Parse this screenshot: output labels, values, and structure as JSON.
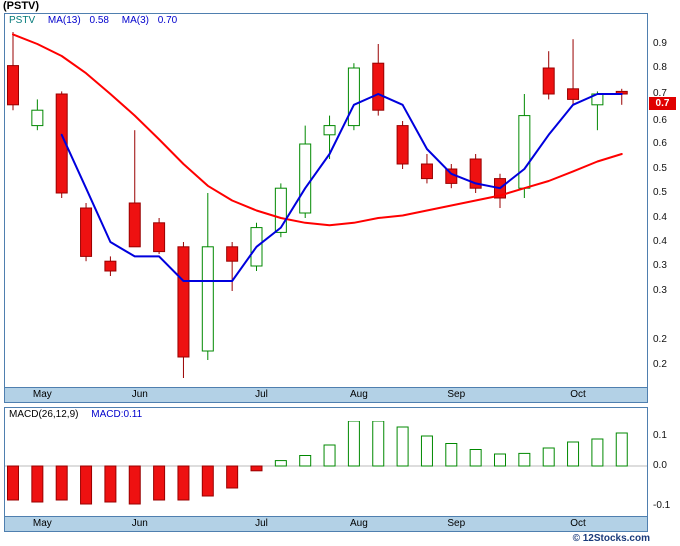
{
  "title": "(PSTV)",
  "footer": {
    "watermark": "© 12Stocks.com"
  },
  "colors": {
    "up": "#008800",
    "up_fill": "#ffffff",
    "down": "#990000",
    "down_fill": "#ee1111",
    "ma_slow": "#ff0000",
    "ma_fast": "#0000dd",
    "axis_band": "#b3d1e6",
    "panel_border": "#4f7faf",
    "price_box_bg": "#e00000",
    "price_box_text": "#ffffff",
    "legend_blue": "#0000cc",
    "ticker_teal": "#007878",
    "zero_line": "#bbbbbb"
  },
  "main": {
    "legend": {
      "symbol": "PSTV",
      "ma13_label": "MA(13)",
      "ma13_value": "0.58",
      "ma3_label": "MA(3)",
      "ma3_value": "0.70"
    },
    "price_marker": {
      "label": "0.7",
      "y": 77
    }
  },
  "macd": {
    "legend_label": "MACD(26,12,9)",
    "legend_value": "MACD:0.11"
  },
  "chart_data": [
    {
      "type": "candlestick",
      "title": "PSTV weekly candlestick chart with MA(13)=0.58 and MA(3)=0.70, last close 0.70",
      "x_labels": [
        "May",
        "Jun",
        "Jul",
        "Aug",
        "Sep",
        "Oct"
      ],
      "x_label_indices": [
        1,
        5,
        10,
        14,
        18,
        23
      ],
      "y_scale_anchors": [
        [
          0.9,
          17
        ],
        [
          0.8,
          41
        ],
        [
          0.7,
          67
        ],
        [
          0.65,
          94
        ],
        [
          0.6,
          117
        ],
        [
          0.55,
          142
        ],
        [
          0.5,
          166
        ],
        [
          0.45,
          191
        ],
        [
          0.4,
          215
        ],
        [
          0.35,
          239
        ],
        [
          0.3,
          264
        ],
        [
          0.25,
          300
        ],
        [
          0.2,
          330
        ]
      ],
      "y_tick_labels": [
        [
          "0.9",
          17
        ],
        [
          "0.8",
          41
        ],
        [
          "0.7",
          67
        ],
        [
          "0.6",
          94
        ],
        [
          "0.6",
          117
        ],
        [
          "0.5",
          142
        ],
        [
          "0.5",
          166
        ],
        [
          "0.4",
          191
        ],
        [
          "0.4",
          215
        ],
        [
          "0.3",
          239
        ],
        [
          "0.3",
          264
        ],
        [
          "0.2",
          313
        ],
        [
          "0.2",
          338
        ]
      ],
      "candles": [
        [
          0.81,
          0.95,
          0.67,
          0.68
        ],
        [
          0.64,
          0.69,
          0.63,
          0.67
        ],
        [
          0.7,
          0.71,
          0.49,
          0.5
        ],
        [
          0.47,
          0.48,
          0.36,
          0.37
        ],
        [
          0.36,
          0.37,
          0.33,
          0.34
        ],
        [
          0.48,
          0.63,
          0.39,
          0.39
        ],
        [
          0.44,
          0.45,
          0.375,
          0.38
        ],
        [
          0.39,
          0.4,
          0.165,
          0.2
        ],
        [
          0.21,
          0.5,
          0.195,
          0.39
        ],
        [
          0.39,
          0.4,
          0.3,
          0.36
        ],
        [
          0.35,
          0.44,
          0.34,
          0.43
        ],
        [
          0.42,
          0.52,
          0.41,
          0.51
        ],
        [
          0.46,
          0.64,
          0.45,
          0.6
        ],
        [
          0.62,
          0.66,
          0.57,
          0.64
        ],
        [
          0.64,
          0.82,
          0.63,
          0.8
        ],
        [
          0.82,
          0.9,
          0.66,
          0.67
        ],
        [
          0.64,
          0.65,
          0.55,
          0.56
        ],
        [
          0.56,
          0.58,
          0.52,
          0.53
        ],
        [
          0.55,
          0.56,
          0.51,
          0.52
        ],
        [
          0.57,
          0.58,
          0.5,
          0.51
        ],
        [
          0.53,
          0.54,
          0.47,
          0.49
        ],
        [
          0.51,
          0.7,
          0.49,
          0.66
        ],
        [
          0.8,
          0.87,
          0.69,
          0.7
        ],
        [
          0.72,
          0.92,
          0.68,
          0.69
        ],
        [
          0.68,
          0.71,
          0.63,
          0.7
        ],
        [
          0.71,
          0.72,
          0.68,
          0.7
        ]
      ],
      "series": [
        {
          "name": "MA(13)",
          "current": 0.58,
          "color_key": "ma_slow",
          "values": [
            0.94,
            0.9,
            0.85,
            0.78,
            0.7,
            0.66,
            0.61,
            0.56,
            0.515,
            0.485,
            0.465,
            0.45,
            0.44,
            0.435,
            0.44,
            0.45,
            0.455,
            0.465,
            0.475,
            0.485,
            0.495,
            0.51,
            0.525,
            0.545,
            0.565,
            0.58
          ]
        },
        {
          "name": "MA(3)",
          "current": 0.7,
          "color_key": "ma_fast",
          "values": [
            null,
            null,
            0.62,
            0.51,
            0.4,
            0.37,
            0.37,
            0.32,
            0.32,
            0.32,
            0.39,
            0.43,
            0.51,
            0.58,
            0.68,
            0.7,
            0.68,
            0.59,
            0.54,
            0.52,
            0.51,
            0.55,
            0.62,
            0.68,
            0.7,
            0.7
          ]
        }
      ]
    },
    {
      "type": "bar",
      "title": "MACD(26,12,9), current 0.11",
      "x_labels": [
        "May",
        "Jun",
        "Jul",
        "Aug",
        "Sep",
        "Oct"
      ],
      "x_label_indices": [
        1,
        5,
        10,
        14,
        18,
        23
      ],
      "y_scale_anchors": [
        [
          0.1,
          15
        ],
        [
          0,
          45
        ],
        [
          -0.1,
          85
        ]
      ],
      "y_tick_labels": [
        [
          "0.1",
          15
        ],
        [
          "0.0",
          45
        ],
        [
          "-0.1",
          85
        ]
      ],
      "values": [
        -0.085,
        -0.09,
        -0.085,
        -0.095,
        -0.09,
        -0.095,
        -0.085,
        -0.085,
        -0.075,
        -0.055,
        -0.012,
        0.018,
        0.035,
        0.07,
        0.15,
        0.155,
        0.13,
        0.1,
        0.075,
        0.055,
        0.04,
        0.042,
        0.06,
        0.08,
        0.09,
        0.11
      ]
    }
  ]
}
